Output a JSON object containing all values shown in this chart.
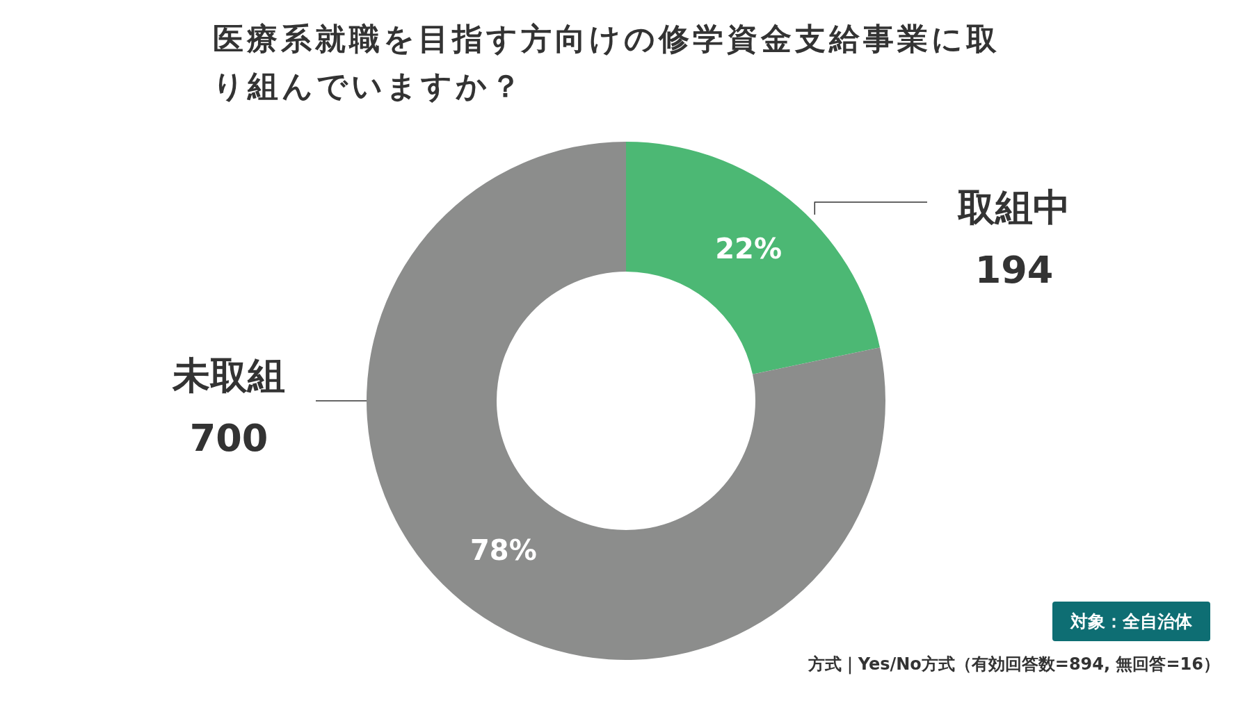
{
  "chart_data": {
    "type": "donut",
    "title": "医療系就職を目指す方向けの修学資金支給事業に取り組んでいますか？",
    "categories": [
      "取組中",
      "未取組"
    ],
    "values": [
      194,
      700
    ],
    "colors": [
      "#4cb874",
      "#8c8d8c"
    ],
    "value_labels": [
      "194",
      "700"
    ],
    "annotations": [
      {
        "text": "22%",
        "x": "取組中"
      },
      {
        "text": "78%",
        "x": "未取組"
      },
      "対象：全自治体",
      "方式｜Yes/No方式（有効回答数=894, 無回答=16）"
    ]
  }
}
